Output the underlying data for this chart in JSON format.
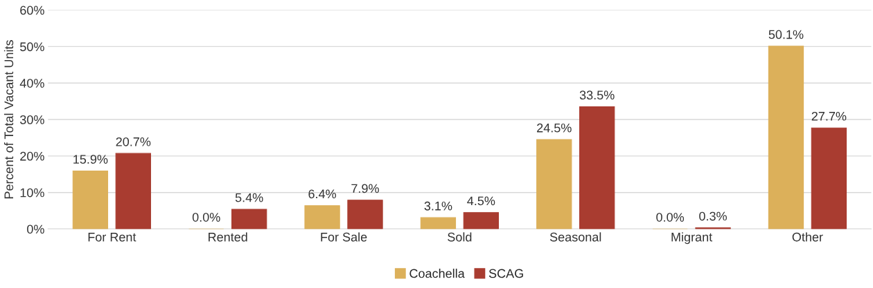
{
  "chart_data": {
    "type": "bar",
    "ylabel": "Percent of Total Vacant Units",
    "categories": [
      "For Rent",
      "Rented",
      "For Sale",
      "Sold",
      "Seasonal",
      "Migrant",
      "Other"
    ],
    "series": [
      {
        "name": "Coachella",
        "color": "#dcb05a",
        "values": [
          15.9,
          0.0,
          6.4,
          3.1,
          24.5,
          0.0,
          50.1
        ],
        "value_labels": [
          "15.9%",
          "0.0%",
          "6.4%",
          "3.1%",
          "24.5%",
          "0.0%",
          "50.1%"
        ]
      },
      {
        "name": "SCAG",
        "color": "#a93c30",
        "values": [
          20.7,
          5.4,
          7.9,
          4.5,
          33.5,
          0.3,
          27.7
        ],
        "value_labels": [
          "20.7%",
          "5.4%",
          "7.9%",
          "4.5%",
          "33.5%",
          "0.3%",
          "27.7%"
        ]
      }
    ],
    "ylim": [
      0,
      60
    ],
    "yticks": [
      {
        "value": 0,
        "label": "0%"
      },
      {
        "value": 10,
        "label": "10%"
      },
      {
        "value": 20,
        "label": "20%"
      },
      {
        "value": 30,
        "label": "30%"
      },
      {
        "value": 40,
        "label": "40%"
      },
      {
        "value": 50,
        "label": "50%"
      },
      {
        "value": 60,
        "label": "60%"
      }
    ],
    "grid": "y",
    "legend": "bottom"
  }
}
